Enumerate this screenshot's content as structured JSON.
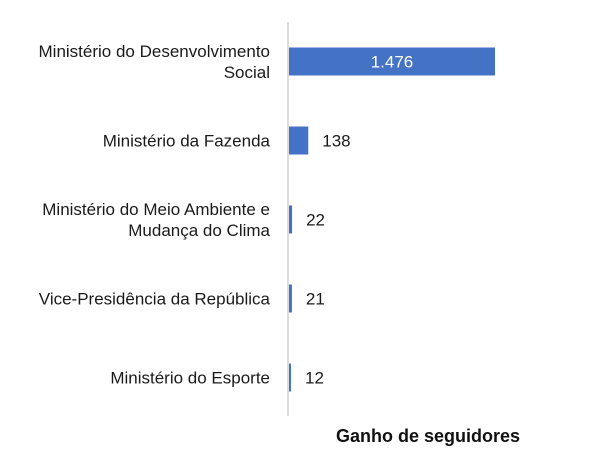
{
  "chart_data": {
    "type": "bar",
    "orientation": "horizontal",
    "categories": [
      [
        "Ministério do Desenvolvimento",
        "Social"
      ],
      [
        "Ministério da Fazenda"
      ],
      [
        "Ministério do Meio Ambiente e",
        "Mudança do Clima"
      ],
      [
        "Vice-Presidência da República"
      ],
      [
        "Ministério do Esporte"
      ]
    ],
    "values": [
      1476,
      138,
      22,
      21,
      12
    ],
    "value_labels": [
      "1.476",
      "138",
      "22",
      "21",
      "12"
    ],
    "xlabel": "Ganho de seguidores",
    "xlim": [
      0,
      1476
    ],
    "grid": false,
    "bar_color": "#4472c4"
  }
}
